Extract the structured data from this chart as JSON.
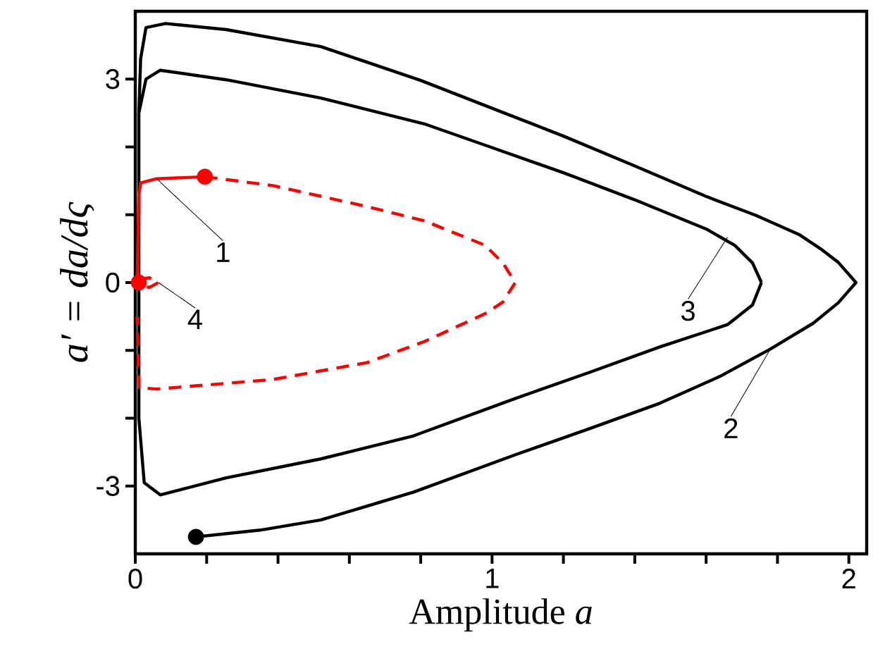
{
  "chart_data": {
    "type": "line",
    "xlabel": "Amplitude *a*",
    "ylabel": "a′ = da/dς",
    "xlim": [
      0,
      2.05
    ],
    "ylim": [
      -4,
      4
    ],
    "xticks": [
      0,
      {
        "value": 0.2,
        "label": null
      },
      {
        "value": 0.4,
        "label": null
      },
      {
        "value": 0.6,
        "label": null
      },
      {
        "value": 0.8,
        "label": null
      },
      1,
      {
        "value": 1.2,
        "label": null
      },
      {
        "value": 1.4,
        "label": null
      },
      {
        "value": 1.6,
        "label": null
      },
      {
        "value": 1.8,
        "label": null
      },
      2
    ],
    "yticks": [
      -3,
      {
        "value": -2,
        "label": null
      },
      {
        "value": -1,
        "label": null
      },
      0,
      {
        "value": 1,
        "label": null
      },
      {
        "value": 2,
        "label": null
      },
      3
    ],
    "grid": false,
    "series": [
      {
        "color": "#000000",
        "line_style": "solid",
        "x": [
          0.17,
          0.35,
          0.52,
          0.78,
          1.07,
          1.27,
          1.47,
          1.64,
          1.78,
          1.9,
          1.97,
          2.02,
          1.97,
          1.92,
          1.86,
          1.74,
          1.6,
          1.4,
          1.2,
          1.0,
          0.8,
          0.52,
          0.255,
          0.085,
          0.03,
          0.015,
          0.01
        ],
        "values": [
          -3.75,
          -3.65,
          -3.5,
          -3.09,
          -2.53,
          -2.16,
          -1.78,
          -1.38,
          -0.98,
          -0.6,
          -0.3,
          0,
          0.3,
          0.5,
          0.71,
          0.99,
          1.27,
          1.72,
          2.16,
          2.57,
          2.98,
          3.48,
          3.73,
          3.82,
          3.76,
          3.3,
          2.5
        ]
      },
      {
        "color": "#000000",
        "line_style": "solid",
        "x": [
          0.01,
          0.01,
          0.03,
          0.07,
          0.255,
          0.52,
          0.81,
          1.0,
          1.2,
          1.4,
          1.6,
          1.68,
          1.73,
          1.755
        ],
        "values": [
          0,
          2.5,
          3.0,
          3.13,
          2.99,
          2.72,
          2.34,
          1.99,
          1.62,
          1.22,
          0.79,
          0.55,
          0.29,
          0
        ]
      },
      {
        "color": "#000000",
        "line_style": "solid",
        "x": [
          1.755,
          1.73,
          1.66,
          1.47,
          1.27,
          1.07,
          0.78,
          0.52,
          0.255,
          0.07,
          0.025,
          0.01,
          0.01
        ],
        "values": [
          0,
          -0.33,
          -0.62,
          -0.95,
          -1.33,
          -1.7,
          -2.26,
          -2.6,
          -2.88,
          -3.13,
          -2.95,
          -2.0,
          0
        ]
      },
      {
        "color": "#ff0000",
        "line_style": "solid",
        "x": [
          0.005,
          0.01,
          0.015,
          0.06,
          0.195
        ],
        "values": [
          0,
          1.3,
          1.47,
          1.53,
          1.56
        ]
      },
      {
        "color": "#ff0000",
        "line_style": "dashed",
        "x": [
          0.195,
          0.385,
          0.65,
          0.81,
          0.98,
          1.03,
          1.065,
          1.03,
          0.98,
          0.81,
          0.65,
          0.385,
          0.06,
          0.01,
          0.005
        ],
        "values": [
          1.56,
          1.43,
          1.12,
          0.91,
          0.55,
          0.29,
          0,
          -0.29,
          -0.46,
          -0.87,
          -1.18,
          -1.43,
          -1.57,
          -1.55,
          -0.5
        ]
      },
      {
        "color": "#ff0000",
        "line_style": "dashed",
        "x": [
          0.01,
          0.04,
          0.065,
          0.04,
          0.01
        ],
        "values": [
          0.05,
          0.07,
          0,
          -0.07,
          -0.05
        ]
      },
      {
        "type": "scatter",
        "color": "#000000",
        "marker": "circle",
        "x": [
          0.17
        ],
        "values": [
          -3.75
        ]
      },
      {
        "type": "scatter",
        "color": "#ff0000",
        "marker": "circle",
        "x": [
          0.195,
          0.01
        ],
        "values": [
          1.56,
          0
        ]
      }
    ],
    "annotations": [
      {
        "text": "1",
        "x": 0.06,
        "y": 1.53
      },
      {
        "text": "4",
        "x": 0.065,
        "y": 0
      },
      {
        "text": "3",
        "x": 1.66,
        "y": 0.67
      },
      {
        "text": "2",
        "x": 1.78,
        "y": -0.98
      }
    ]
  }
}
